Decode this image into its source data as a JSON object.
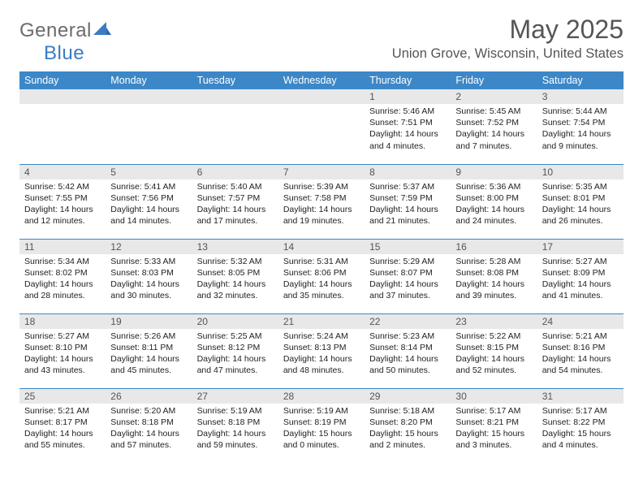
{
  "brand": {
    "text_a": "General",
    "text_b": "Blue",
    "color_gray": "#6b6b6b",
    "color_blue": "#3a7cc4",
    "sail_fill": "#3a7cc4"
  },
  "title": "May 2025",
  "location": "Union Grove, Wisconsin, United States",
  "header_bg": "#3c87c7",
  "header_fg": "#ffffff",
  "daynum_bg": "#e8e8e8",
  "rule_color": "#3c87c7",
  "background_color": "#ffffff",
  "weekdays": [
    "Sunday",
    "Monday",
    "Tuesday",
    "Wednesday",
    "Thursday",
    "Friday",
    "Saturday"
  ],
  "weeks": [
    [
      null,
      null,
      null,
      null,
      {
        "n": "1",
        "sr": "5:46 AM",
        "ss": "7:51 PM",
        "dl": "14 hours and 4 minutes."
      },
      {
        "n": "2",
        "sr": "5:45 AM",
        "ss": "7:52 PM",
        "dl": "14 hours and 7 minutes."
      },
      {
        "n": "3",
        "sr": "5:44 AM",
        "ss": "7:54 PM",
        "dl": "14 hours and 9 minutes."
      }
    ],
    [
      {
        "n": "4",
        "sr": "5:42 AM",
        "ss": "7:55 PM",
        "dl": "14 hours and 12 minutes."
      },
      {
        "n": "5",
        "sr": "5:41 AM",
        "ss": "7:56 PM",
        "dl": "14 hours and 14 minutes."
      },
      {
        "n": "6",
        "sr": "5:40 AM",
        "ss": "7:57 PM",
        "dl": "14 hours and 17 minutes."
      },
      {
        "n": "7",
        "sr": "5:39 AM",
        "ss": "7:58 PM",
        "dl": "14 hours and 19 minutes."
      },
      {
        "n": "8",
        "sr": "5:37 AM",
        "ss": "7:59 PM",
        "dl": "14 hours and 21 minutes."
      },
      {
        "n": "9",
        "sr": "5:36 AM",
        "ss": "8:00 PM",
        "dl": "14 hours and 24 minutes."
      },
      {
        "n": "10",
        "sr": "5:35 AM",
        "ss": "8:01 PM",
        "dl": "14 hours and 26 minutes."
      }
    ],
    [
      {
        "n": "11",
        "sr": "5:34 AM",
        "ss": "8:02 PM",
        "dl": "14 hours and 28 minutes."
      },
      {
        "n": "12",
        "sr": "5:33 AM",
        "ss": "8:03 PM",
        "dl": "14 hours and 30 minutes."
      },
      {
        "n": "13",
        "sr": "5:32 AM",
        "ss": "8:05 PM",
        "dl": "14 hours and 32 minutes."
      },
      {
        "n": "14",
        "sr": "5:31 AM",
        "ss": "8:06 PM",
        "dl": "14 hours and 35 minutes."
      },
      {
        "n": "15",
        "sr": "5:29 AM",
        "ss": "8:07 PM",
        "dl": "14 hours and 37 minutes."
      },
      {
        "n": "16",
        "sr": "5:28 AM",
        "ss": "8:08 PM",
        "dl": "14 hours and 39 minutes."
      },
      {
        "n": "17",
        "sr": "5:27 AM",
        "ss": "8:09 PM",
        "dl": "14 hours and 41 minutes."
      }
    ],
    [
      {
        "n": "18",
        "sr": "5:27 AM",
        "ss": "8:10 PM",
        "dl": "14 hours and 43 minutes."
      },
      {
        "n": "19",
        "sr": "5:26 AM",
        "ss": "8:11 PM",
        "dl": "14 hours and 45 minutes."
      },
      {
        "n": "20",
        "sr": "5:25 AM",
        "ss": "8:12 PM",
        "dl": "14 hours and 47 minutes."
      },
      {
        "n": "21",
        "sr": "5:24 AM",
        "ss": "8:13 PM",
        "dl": "14 hours and 48 minutes."
      },
      {
        "n": "22",
        "sr": "5:23 AM",
        "ss": "8:14 PM",
        "dl": "14 hours and 50 minutes."
      },
      {
        "n": "23",
        "sr": "5:22 AM",
        "ss": "8:15 PM",
        "dl": "14 hours and 52 minutes."
      },
      {
        "n": "24",
        "sr": "5:21 AM",
        "ss": "8:16 PM",
        "dl": "14 hours and 54 minutes."
      }
    ],
    [
      {
        "n": "25",
        "sr": "5:21 AM",
        "ss": "8:17 PM",
        "dl": "14 hours and 55 minutes."
      },
      {
        "n": "26",
        "sr": "5:20 AM",
        "ss": "8:18 PM",
        "dl": "14 hours and 57 minutes."
      },
      {
        "n": "27",
        "sr": "5:19 AM",
        "ss": "8:18 PM",
        "dl": "14 hours and 59 minutes."
      },
      {
        "n": "28",
        "sr": "5:19 AM",
        "ss": "8:19 PM",
        "dl": "15 hours and 0 minutes."
      },
      {
        "n": "29",
        "sr": "5:18 AM",
        "ss": "8:20 PM",
        "dl": "15 hours and 2 minutes."
      },
      {
        "n": "30",
        "sr": "5:17 AM",
        "ss": "8:21 PM",
        "dl": "15 hours and 3 minutes."
      },
      {
        "n": "31",
        "sr": "5:17 AM",
        "ss": "8:22 PM",
        "dl": "15 hours and 4 minutes."
      }
    ]
  ],
  "labels": {
    "sunrise": "Sunrise: ",
    "sunset": "Sunset: ",
    "daylight": "Daylight: "
  }
}
